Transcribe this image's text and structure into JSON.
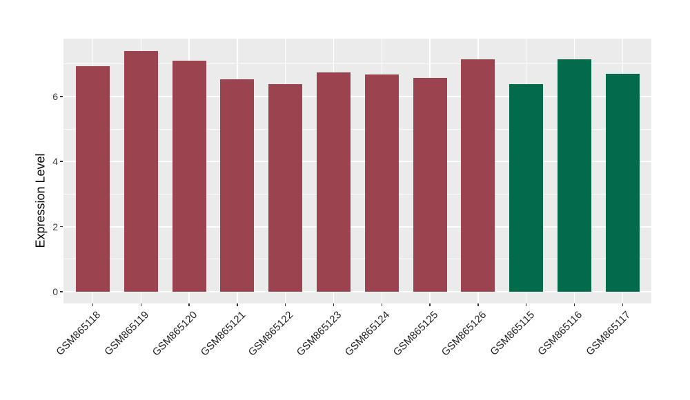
{
  "chart_data": {
    "type": "bar",
    "title": "",
    "xlabel": "",
    "ylabel": "Expression Level",
    "categories": [
      "GSM865118",
      "GSM865119",
      "GSM865120",
      "GSM865121",
      "GSM865122",
      "GSM865123",
      "GSM865124",
      "GSM865125",
      "GSM865126",
      "GSM865115",
      "GSM865116",
      "GSM865117"
    ],
    "values": [
      6.92,
      7.4,
      7.1,
      6.52,
      6.38,
      6.73,
      6.68,
      6.56,
      7.13,
      6.38,
      7.15,
      6.69
    ],
    "groups": [
      "group1",
      "group1",
      "group1",
      "group1",
      "group1",
      "group1",
      "group1",
      "group1",
      "group1",
      "group2",
      "group2",
      "group2"
    ],
    "group_colors": {
      "group1": "#9B4450",
      "group2": "#016B4B"
    },
    "ylim": [
      -0.37,
      7.78
    ],
    "yticks": [
      0,
      2,
      4,
      6
    ],
    "yticks_minor": [
      1,
      3,
      5,
      7
    ],
    "grid": "white major and minor horizontal lines, white vertical line at each category, on gray panel",
    "legend": false,
    "panel_background": "#EBEBEB",
    "grid_color": "#FFFFFF",
    "bar_width_ratio": 0.7
  }
}
